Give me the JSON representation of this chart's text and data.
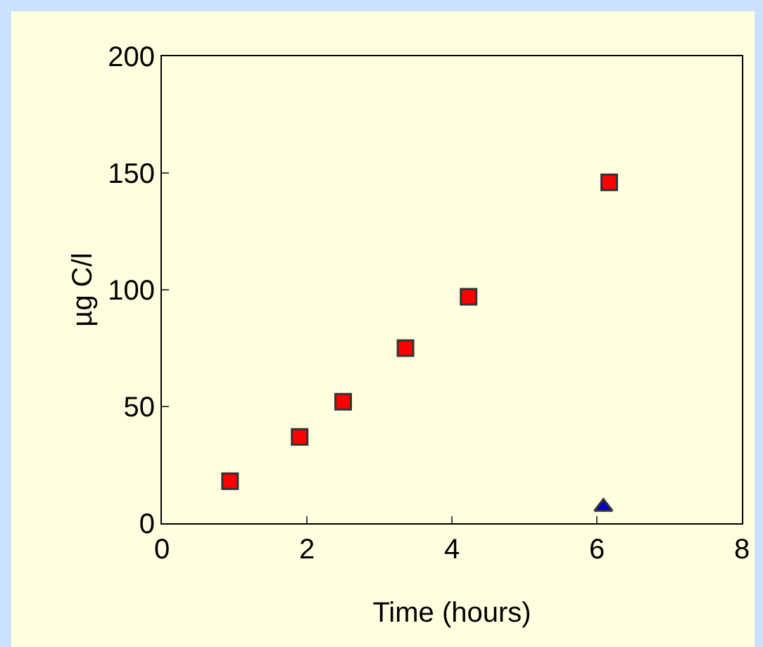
{
  "chart_data": {
    "type": "scatter",
    "xlabel": "Time (hours)",
    "ylabel": "µg C/l",
    "xlim": [
      0,
      8
    ],
    "xticks": [
      0,
      2,
      4,
      6,
      8
    ],
    "ylim": [
      0,
      200
    ],
    "yticks": [
      0,
      50,
      100,
      150,
      200
    ],
    "series": [
      {
        "color": "#ff0000",
        "marker": "square",
        "x": [
          0.94,
          1.9,
          2.5,
          3.36,
          4.23,
          6.17
        ],
        "values": [
          18,
          37,
          52,
          75,
          97,
          146
        ]
      },
      {
        "color": "#0000cc",
        "marker": "triangle",
        "x": [
          6.09
        ],
        "values": [
          7
        ]
      }
    ]
  }
}
